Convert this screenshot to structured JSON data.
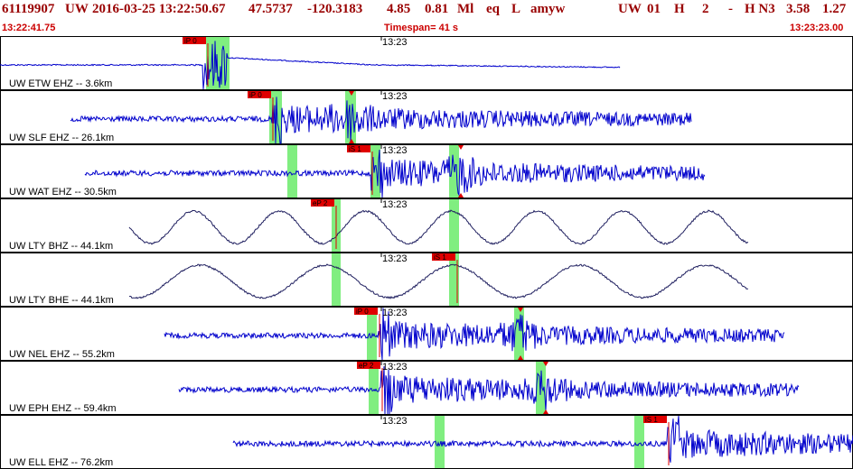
{
  "header": {
    "event_id": "61119907",
    "network": "UW",
    "datetime": "2016-03-25 13:22:50.67",
    "lat": "47.5737",
    "lon": "-120.3183",
    "depth": "4.85",
    "magnitude": "0.81",
    "mag_type": "Ml",
    "event_type": "eq",
    "flag": "L",
    "author": "amyw",
    "net2": "UW",
    "version": "01",
    "h": "H",
    "num": "2",
    "dash": "-",
    "hn3": "H N3",
    "v1": "3.58",
    "v2": "1.27"
  },
  "subheader": {
    "start_time": "13:22:41.75",
    "timespan": "Timespan=  41 s",
    "end_time": "13:23:23.00"
  },
  "colors": {
    "header_text": "#990000",
    "subheader_text": "#cc0000",
    "trace_blue": "#0000cc",
    "trace_dark": "#202060",
    "pick_bg": "#e00000",
    "pick_window": "#80ee80"
  },
  "panels": [
    {
      "label": "UW ETW EHZ -- 3.6km",
      "time_tick": "13:23",
      "trace_style": "broadband_high",
      "picks": [
        {
          "text": "iP 0",
          "kind": "label"
        }
      ],
      "windows": []
    },
    {
      "label": "UW SLF EHZ -- 26.1km",
      "time_tick": "13:23",
      "trace_style": "noise",
      "picks": [
        {
          "text": "iP 0",
          "kind": "label"
        },
        {
          "text": "",
          "kind": "marker"
        }
      ],
      "windows": []
    },
    {
      "label": "UW WAT EHZ -- 30.5km",
      "time_tick": "13:23",
      "trace_style": "noise",
      "picks": [
        {
          "text": "iS 1",
          "kind": "label"
        },
        {
          "text": "",
          "kind": "marker"
        }
      ],
      "windows": []
    },
    {
      "label": "UW LTY BHZ -- 44.1km",
      "time_tick": "13:23",
      "trace_style": "longperiod",
      "picks": [
        {
          "text": "eP 2",
          "kind": "label"
        },
        {
          "text": "",
          "kind": "marker"
        }
      ],
      "windows": []
    },
    {
      "label": "UW LTY BHE -- 44.1km",
      "time_tick": "13:23",
      "trace_style": "longperiod2",
      "picks": [
        {
          "text": "iS 1",
          "kind": "label"
        }
      ],
      "windows": []
    },
    {
      "label": "UW NEL EHZ -- 55.2km",
      "time_tick": "13:23",
      "trace_style": "noise",
      "picks": [
        {
          "text": "iP 0",
          "kind": "label"
        },
        {
          "text": "",
          "kind": "marker"
        }
      ],
      "windows": []
    },
    {
      "label": "UW EPH EHZ -- 59.4km",
      "time_tick": "13:23",
      "trace_style": "noise",
      "picks": [
        {
          "text": "eP 2",
          "kind": "label"
        },
        {
          "text": "",
          "kind": "marker"
        }
      ],
      "windows": []
    },
    {
      "label": "UW ELL EHZ -- 76.2km",
      "time_tick": "13:23",
      "trace_style": "noise",
      "picks": [
        {
          "text": "iS 1",
          "kind": "label"
        }
      ],
      "windows": []
    }
  ]
}
